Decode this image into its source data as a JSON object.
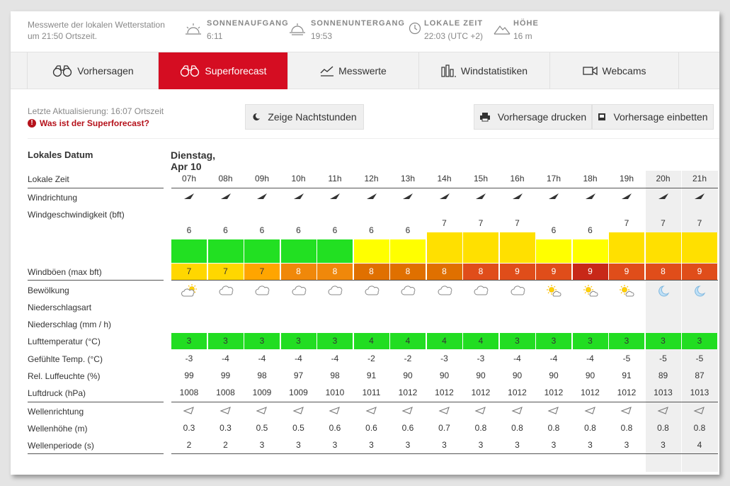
{
  "header": {
    "station_text_1": "Messwerte der lokalen Wetterstation",
    "station_text_2": "um 21:50 Ortszeit.",
    "sunrise_label": "Sonnenaufgang",
    "sunrise_value": "6:11",
    "sunset_label": "Sonnenuntergang",
    "sunset_value": "19:53",
    "localtime_label": "Lokale Zeit",
    "localtime_value": "22:03  (UTC +2)",
    "altitude_label": "Höhe",
    "altitude_value": "16 m"
  },
  "tabs": [
    {
      "label": "Vorhersagen",
      "icon": "binoculars-icon"
    },
    {
      "label": "Superforecast",
      "icon": "binoculars-icon"
    },
    {
      "label": "Messwerte",
      "icon": "chart-line-icon"
    },
    {
      "label": "Windstatistiken",
      "icon": "bar-chart-icon"
    },
    {
      "label": "Webcams",
      "icon": "video-camera-icon"
    }
  ],
  "subbar": {
    "last_update": "Letzte Aktualisierung: 16:07 Ortszeit",
    "what_is": "Was ist der Superforecast?",
    "night_button": "Zeige Nachtstunden",
    "print_button": "Vorhersage drucken",
    "embed_button": "Vorhersage einbetten"
  },
  "table": {
    "date_label": "Lokales Datum",
    "date_value": "Dienstag, Apr 10",
    "labels": {
      "local_time": "Lokale Zeit",
      "wind_direction": "Windrichtung",
      "wind_speed": "Windgeschwindigkeit (bft)",
      "gusts": "Windböen (max bft)",
      "clouds": "Bewölkung",
      "precip_type": "Niederschlagsart",
      "precip": "Niederschlag (mm / h)",
      "air_temp": "Lufttemperatur (°C)",
      "feels_like": "Gefühlte Temp. (°C)",
      "humidity": "Rel. Luffeuchte (%)",
      "pressure": "Luftdruck (hPa)",
      "wave_direction": "Wellenrichtung",
      "wave_height": "Wellenhöhe (m)",
      "wave_period": "Wellenperiode (s)"
    },
    "hours": [
      "07h",
      "08h",
      "09h",
      "10h",
      "11h",
      "12h",
      "13h",
      "14h",
      "15h",
      "16h",
      "17h",
      "18h",
      "19h",
      "20h",
      "21h"
    ],
    "night_hours": [
      13,
      14
    ],
    "wind_speed": [
      "6",
      "6",
      "6",
      "6",
      "6",
      "6",
      "6",
      "7",
      "7",
      "7",
      "6",
      "6",
      "7",
      "7",
      "7"
    ],
    "wind_speed_colors": [
      "#22e022",
      "#22e022",
      "#22e022",
      "#22e022",
      "#22e022",
      "#ffff00",
      "#ffff00",
      "#ffe000",
      "#ffe000",
      "#ffe000",
      "#ffff00",
      "#ffff00",
      "#ffe000",
      "#ffe000",
      "#ffe000"
    ],
    "gusts": [
      "7",
      "7",
      "7",
      "8",
      "8",
      "8",
      "8",
      "8",
      "8",
      "9",
      "9",
      "9",
      "9",
      "8",
      "9"
    ],
    "gust_colors": [
      "#ffd700",
      "#ffd700",
      "#ffa500",
      "#f0880a",
      "#f0880a",
      "#e07000",
      "#e07000",
      "#e07000",
      "#e04d1a",
      "#e04d1a",
      "#e04d1a",
      "#c82818",
      "#e04d1a",
      "#e04d1a",
      "#e04d1a"
    ],
    "clouds": [
      "partly-cloudy-sun-icon",
      "cloud-icon",
      "cloud-icon",
      "cloud-icon",
      "cloud-icon",
      "cloud-icon",
      "cloud-icon",
      "cloud-icon",
      "cloud-icon",
      "cloud-icon",
      "sun-cloud-icon",
      "sun-cloud-icon",
      "sun-cloud-icon",
      "moon-icon",
      "moon-icon"
    ],
    "air_temp": [
      "3",
      "3",
      "3",
      "3",
      "3",
      "4",
      "4",
      "4",
      "4",
      "3",
      "3",
      "3",
      "3",
      "3",
      "3"
    ],
    "air_temp_color": "#22dd22",
    "feels_like": [
      "-3",
      "-4",
      "-4",
      "-4",
      "-4",
      "-2",
      "-2",
      "-3",
      "-3",
      "-4",
      "-4",
      "-4",
      "-5",
      "-5",
      "-5"
    ],
    "humidity": [
      "99",
      "99",
      "98",
      "97",
      "98",
      "91",
      "90",
      "90",
      "90",
      "90",
      "90",
      "90",
      "91",
      "89",
      "87"
    ],
    "pressure": [
      "1008",
      "1008",
      "1009",
      "1009",
      "1010",
      "1011",
      "1012",
      "1012",
      "1012",
      "1012",
      "1012",
      "1012",
      "1012",
      "1013",
      "1013"
    ],
    "wave_height": [
      "0.3",
      "0.3",
      "0.5",
      "0.5",
      "0.6",
      "0.6",
      "0.6",
      "0.7",
      "0.8",
      "0.8",
      "0.8",
      "0.8",
      "0.8",
      "0.8",
      "0.8"
    ],
    "wave_period": [
      "2",
      "2",
      "3",
      "3",
      "3",
      "3",
      "3",
      "3",
      "3",
      "3",
      "3",
      "3",
      "3",
      "3",
      "4"
    ]
  }
}
